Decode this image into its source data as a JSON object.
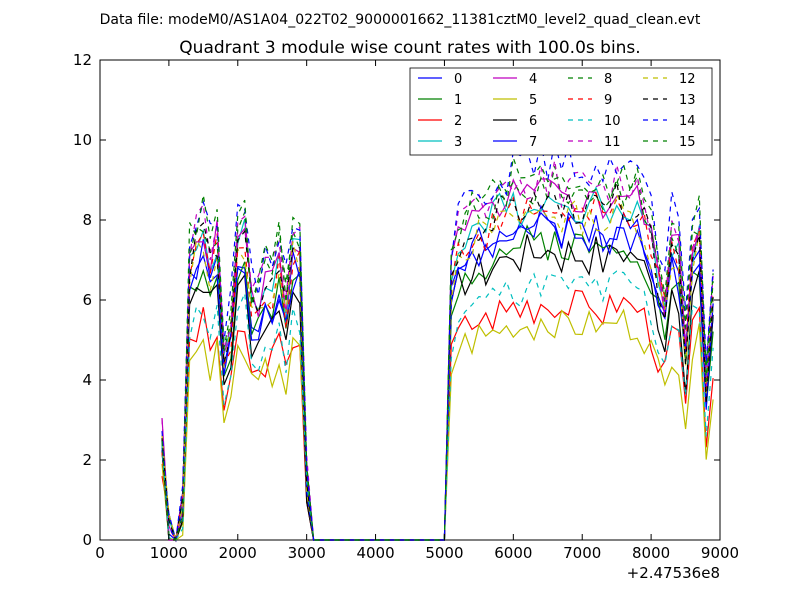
{
  "figure": {
    "suptitle": "Data file: modeM0/AS1A04_022T02_9000001662_11381cztM0_level2_quad_clean.evt"
  },
  "chart_data": {
    "type": "line",
    "title": "Quadrant 3 module wise count rates with 100.0s bins.",
    "xlabel": "",
    "ylabel": "",
    "x_offset_label": "+2.47536e8",
    "xlim": [
      0,
      9000
    ],
    "ylim": [
      0,
      12
    ],
    "xticks": [
      0,
      1000,
      2000,
      3000,
      4000,
      5000,
      6000,
      7000,
      8000,
      9000
    ],
    "yticks": [
      0,
      2,
      4,
      6,
      8,
      10,
      12
    ],
    "grid": false,
    "legend_position": "top-right",
    "legend_columns": 4,
    "x": [
      900,
      1000,
      1100,
      1200,
      1300,
      1400,
      1500,
      1600,
      1700,
      1800,
      1900,
      2000,
      2100,
      2200,
      2300,
      2400,
      2500,
      2600,
      2700,
      2800,
      2900,
      3000,
      3100,
      3200,
      3300,
      3400,
      3500,
      3600,
      3700,
      3800,
      3900,
      4000,
      4100,
      4200,
      4300,
      4400,
      4500,
      4600,
      4700,
      4800,
      4900,
      5000,
      5100,
      5200,
      5300,
      5400,
      5500,
      5600,
      5700,
      5800,
      5900,
      6000,
      6100,
      6200,
      6300,
      6400,
      6500,
      6600,
      6700,
      6800,
      6900,
      7000,
      7100,
      7200,
      7300,
      7400,
      7500,
      7600,
      7700,
      7800,
      7900,
      8000,
      8100,
      8200,
      8300,
      8400,
      8500,
      8600,
      8700,
      8800,
      8900
    ],
    "profiles": {
      "base": [
        2.5,
        0.3,
        0,
        0.8,
        6.6,
        7.0,
        7.3,
        6.5,
        7.0,
        4.4,
        5.0,
        6.8,
        7.2,
        5.5,
        5.5,
        6.1,
        6.0,
        6.7,
        5.5,
        6.9,
        6.9,
        1.5,
        0,
        0,
        0,
        0,
        0,
        0,
        0,
        0,
        0,
        0,
        0,
        0,
        0,
        0,
        0,
        0,
        0,
        0,
        0,
        0,
        6.2,
        7.0,
        7.2,
        7.3,
        7.5,
        7.4,
        7.6,
        7.8,
        7.7,
        8.0,
        7.8,
        8.0,
        7.9,
        8.1,
        8.0,
        8.1,
        7.8,
        8.0,
        7.9,
        7.9,
        7.8,
        8.0,
        7.7,
        7.8,
        8.1,
        8.0,
        7.9,
        7.9,
        7.5,
        7.0,
        6.2,
        5.5,
        7.0,
        6.7,
        4.5,
        6.9,
        7.3,
        3.6,
        5.8
      ],
      "start_index": 0
    },
    "series": [
      {
        "name": "0",
        "color": "#0000ff",
        "dash": "solid",
        "scale": 0.98,
        "seed": 1
      },
      {
        "name": "1",
        "color": "#008000",
        "dash": "solid",
        "scale": 0.93,
        "seed": 2
      },
      {
        "name": "2",
        "color": "#ff0000",
        "dash": "solid",
        "scale": 0.74,
        "seed": 3
      },
      {
        "name": "3",
        "color": "#00bfbf",
        "dash": "solid",
        "scale": 1.06,
        "seed": 4
      },
      {
        "name": "4",
        "color": "#bf00bf",
        "dash": "solid",
        "scale": 1.08,
        "seed": 5
      },
      {
        "name": "5",
        "color": "#bfbf00",
        "dash": "solid",
        "scale": 0.68,
        "seed": 6
      },
      {
        "name": "6",
        "color": "#000000",
        "dash": "solid",
        "scale": 0.9,
        "seed": 7
      },
      {
        "name": "7",
        "color": "#0000ff",
        "dash": "solid",
        "scale": 0.96,
        "seed": 8
      },
      {
        "name": "8",
        "color": "#008000",
        "dash": "dashed",
        "scale": 1.1,
        "seed": 9
      },
      {
        "name": "9",
        "color": "#ff0000",
        "dash": "dashed",
        "scale": 1.03,
        "seed": 10
      },
      {
        "name": "10",
        "color": "#00bfbf",
        "dash": "dashed",
        "scale": 0.8,
        "seed": 11
      },
      {
        "name": "11",
        "color": "#bf00bf",
        "dash": "dashed",
        "scale": 1.12,
        "seed": 12
      },
      {
        "name": "12",
        "color": "#bfbf00",
        "dash": "dashed",
        "scale": 1.02,
        "seed": 13
      },
      {
        "name": "13",
        "color": "#000000",
        "dash": "dashed",
        "scale": 1.05,
        "seed": 14
      },
      {
        "name": "14",
        "color": "#0000ff",
        "dash": "dashed",
        "scale": 1.18,
        "seed": 15
      },
      {
        "name": "15",
        "color": "#008000",
        "dash": "dashed",
        "scale": 1.14,
        "seed": 16
      }
    ]
  }
}
